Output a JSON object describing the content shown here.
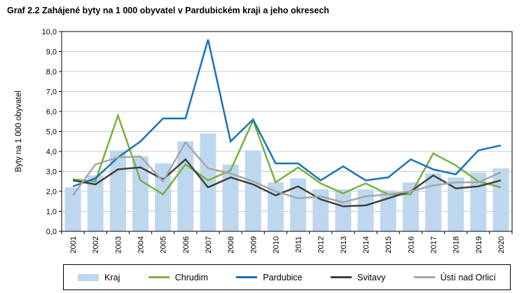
{
  "chart_data": {
    "type": "combo",
    "title": "Graf 2.2 Zahájené byty na 1 000 obyvatel v Pardubickém kraji a jeho okresech",
    "ylabel": "Byty na 1 000 obyvatel",
    "xlabel": "",
    "ylim": [
      0,
      10
    ],
    "ytick_interval": 1.0,
    "ytick_labels": [
      "0,0",
      "1,0",
      "2,0",
      "3,0",
      "4,0",
      "5,0",
      "6,0",
      "7,0",
      "8,0",
      "9,0",
      "10,0"
    ],
    "grid": true,
    "legend_position": "bottom",
    "categories": [
      "2001",
      "2002",
      "2003",
      "2004",
      "2005",
      "2006",
      "2007",
      "2008",
      "2009",
      "2010",
      "2011",
      "2012",
      "2013",
      "2014",
      "2015",
      "2016",
      "2017",
      "2018",
      "2019",
      "2020"
    ],
    "series": [
      {
        "name": "Kraj",
        "type": "bar",
        "color": "#BDD7EE",
        "values": [
          2.2,
          2.8,
          4.05,
          3.75,
          3.4,
          4.5,
          4.9,
          3.35,
          4.05,
          2.45,
          2.65,
          2.1,
          2.1,
          2.1,
          2.05,
          2.45,
          2.9,
          2.7,
          2.95,
          3.15
        ]
      },
      {
        "name": "Chrudim",
        "type": "line",
        "color": "#76B23F",
        "values": [
          2.6,
          2.5,
          5.8,
          2.55,
          1.85,
          3.35,
          2.55,
          3.05,
          5.55,
          2.45,
          3.2,
          2.4,
          1.9,
          2.4,
          1.85,
          1.85,
          3.9,
          3.3,
          2.5,
          2.2
        ]
      },
      {
        "name": "Pardubice",
        "type": "line",
        "color": "#1673BC",
        "values": [
          2.25,
          2.65,
          3.7,
          4.5,
          5.65,
          5.65,
          9.6,
          4.5,
          5.6,
          3.4,
          3.4,
          2.55,
          3.25,
          2.55,
          2.7,
          3.6,
          3.1,
          2.85,
          4.05,
          4.3
        ]
      },
      {
        "name": "Svitavy",
        "type": "line",
        "color": "#404040",
        "values": [
          2.55,
          2.35,
          3.1,
          3.2,
          2.6,
          3.6,
          2.2,
          2.7,
          2.35,
          1.8,
          2.25,
          1.6,
          1.25,
          1.3,
          1.65,
          2.0,
          2.8,
          2.15,
          2.25,
          2.55
        ]
      },
      {
        "name": "Ústí nad Orlicí",
        "type": "line",
        "color": "#A6A6A6",
        "values": [
          1.8,
          3.35,
          3.7,
          3.75,
          2.5,
          4.45,
          3.15,
          2.9,
          2.5,
          2.0,
          1.65,
          1.75,
          1.45,
          1.75,
          1.85,
          2.0,
          2.3,
          2.45,
          2.45,
          2.95
        ]
      }
    ],
    "grid_color": "#C9C9C9",
    "axis_color": "#000000"
  }
}
